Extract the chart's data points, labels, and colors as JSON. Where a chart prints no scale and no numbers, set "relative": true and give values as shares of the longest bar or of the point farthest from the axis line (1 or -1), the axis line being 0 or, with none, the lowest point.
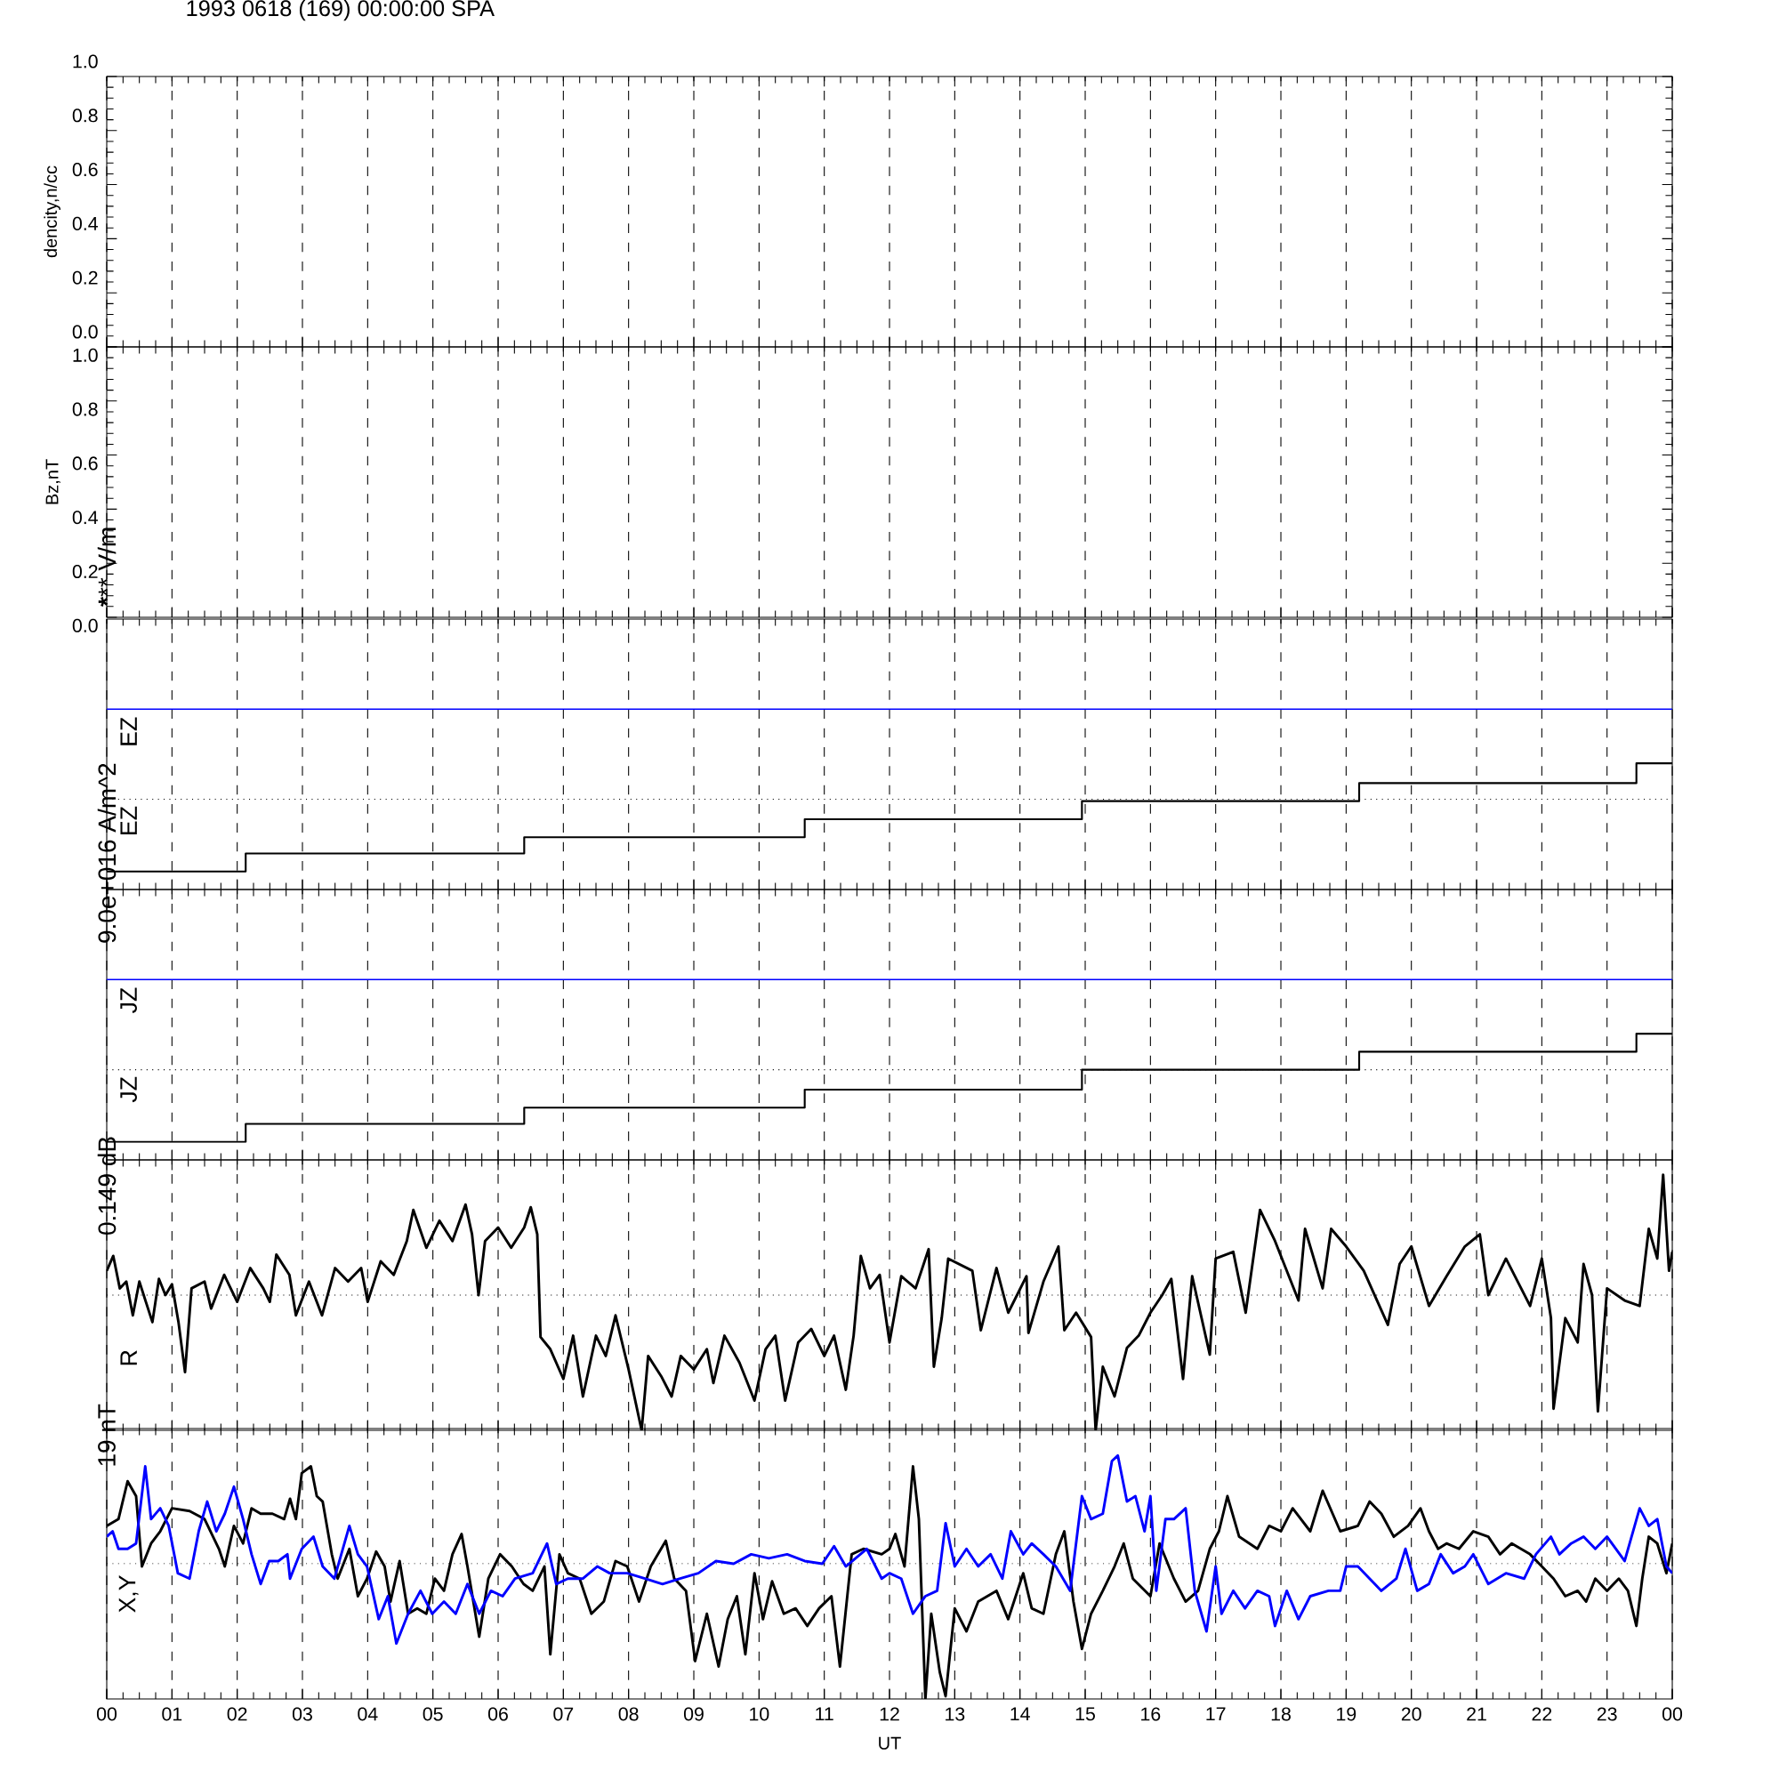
{
  "chart_data": [
    {
      "type": "line",
      "title": "1993 0618 (169) 00:00:00 SPA",
      "ylabel": "dencity,n/cc",
      "xlim": [
        0,
        24
      ],
      "ylim": [
        0,
        1
      ],
      "grid": "x",
      "tick_labels": "y",
      "xticks": [
        {
          "value": 0,
          "label": null
        },
        {
          "value": 1,
          "label": null
        },
        {
          "value": 2,
          "label": null
        },
        {
          "value": 3,
          "label": null
        },
        {
          "value": 4,
          "label": null
        },
        {
          "value": 5,
          "label": null
        },
        {
          "value": 6,
          "label": null
        },
        {
          "value": 7,
          "label": null
        },
        {
          "value": 8,
          "label": null
        },
        {
          "value": 9,
          "label": null
        },
        {
          "value": 10,
          "label": null
        },
        {
          "value": 11,
          "label": null
        },
        {
          "value": 12,
          "label": null
        },
        {
          "value": 13,
          "label": null
        },
        {
          "value": 14,
          "label": null
        },
        {
          "value": 15,
          "label": null
        },
        {
          "value": 16,
          "label": null
        },
        {
          "value": 17,
          "label": null
        },
        {
          "value": 18,
          "label": null
        },
        {
          "value": 19,
          "label": null
        },
        {
          "value": 20,
          "label": null
        },
        {
          "value": 21,
          "label": null
        },
        {
          "value": 22,
          "label": null
        },
        {
          "value": 23,
          "label": null
        },
        {
          "value": 24,
          "label": null
        }
      ],
      "yticks": [
        {
          "value": 0,
          "label": "0.0"
        },
        {
          "value": 0.2,
          "label": "0.2"
        },
        {
          "value": 0.4,
          "label": "0.4"
        },
        {
          "value": 0.6,
          "label": "0.6"
        },
        {
          "value": 0.8,
          "label": "0.8"
        },
        {
          "value": 1,
          "label": "1.0"
        }
      ]
    },
    {
      "type": "line",
      "ylabel": "Bz,nT",
      "xlim": [
        0,
        24
      ],
      "ylim": [
        0,
        1
      ],
      "grid": "x",
      "tick_labels": "y",
      "xticks": [
        {
          "value": 0,
          "label": null
        },
        {
          "value": 1,
          "label": null
        },
        {
          "value": 2,
          "label": null
        },
        {
          "value": 3,
          "label": null
        },
        {
          "value": 4,
          "label": null
        },
        {
          "value": 5,
          "label": null
        },
        {
          "value": 6,
          "label": null
        },
        {
          "value": 7,
          "label": null
        },
        {
          "value": 8,
          "label": null
        },
        {
          "value": 9,
          "label": null
        },
        {
          "value": 10,
          "label": null
        },
        {
          "value": 11,
          "label": null
        },
        {
          "value": 12,
          "label": null
        },
        {
          "value": 13,
          "label": null
        },
        {
          "value": 14,
          "label": null
        },
        {
          "value": 15,
          "label": null
        },
        {
          "value": 16,
          "label": null
        },
        {
          "value": 17,
          "label": null
        },
        {
          "value": 18,
          "label": null
        },
        {
          "value": 19,
          "label": null
        },
        {
          "value": 20,
          "label": null
        },
        {
          "value": 21,
          "label": null
        },
        {
          "value": 22,
          "label": null
        },
        {
          "value": 23,
          "label": null
        },
        {
          "value": 24,
          "label": null
        }
      ],
      "yticks": [
        {
          "value": 0,
          "label": "0.0"
        },
        {
          "value": 0.2,
          "label": "0.2"
        },
        {
          "value": 0.4,
          "label": "0.4"
        },
        {
          "value": 0.6,
          "label": "0.6"
        },
        {
          "value": 0.8,
          "label": "0.8"
        },
        {
          "value": 1,
          "label": "1.0"
        }
      ]
    },
    {
      "type": "step",
      "relative": true,
      "ylabel": "******* V/m",
      "xlim": [
        0,
        24
      ],
      "grid": "x",
      "tick_labels": false,
      "xticks": [
        {
          "value": 0,
          "label": null
        },
        {
          "value": 1,
          "label": null
        },
        {
          "value": 2,
          "label": null
        },
        {
          "value": 3,
          "label": null
        },
        {
          "value": 4,
          "label": null
        },
        {
          "value": 5,
          "label": null
        },
        {
          "value": 6,
          "label": null
        },
        {
          "value": 7,
          "label": null
        },
        {
          "value": 8,
          "label": null
        },
        {
          "value": 9,
          "label": null
        },
        {
          "value": 10,
          "label": null
        },
        {
          "value": 11,
          "label": null
        },
        {
          "value": 12,
          "label": null
        },
        {
          "value": 13,
          "label": null
        },
        {
          "value": 14,
          "label": null
        },
        {
          "value": 15,
          "label": null
        },
        {
          "value": 16,
          "label": null
        },
        {
          "value": 17,
          "label": null
        },
        {
          "value": 18,
          "label": null
        },
        {
          "value": 19,
          "label": null
        },
        {
          "value": 20,
          "label": null
        },
        {
          "value": 21,
          "label": null
        },
        {
          "value": 22,
          "label": null
        },
        {
          "value": 23,
          "label": null
        },
        {
          "value": 24,
          "label": null
        }
      ],
      "ref_lines": [
        {
          "axis": "y",
          "value": 0.5,
          "line_style": "dotted"
        }
      ],
      "series": [
        {
          "name": "EZ",
          "color": "#0000ff",
          "x": [
            0,
            24
          ],
          "values": [
            1,
            1
          ]
        },
        {
          "name": "EZ",
          "color": "#000000",
          "x": [
            0,
            2.13,
            6.4,
            10.7,
            14.95,
            19.2,
            23.45,
            24
          ],
          "values": [
            0.1,
            0.2,
            0.29,
            0.39,
            0.49,
            0.59,
            0.7,
            0.7
          ]
        }
      ]
    },
    {
      "type": "step",
      "relative": true,
      "ylabel": "9.0e+016 A/m^2",
      "xlim": [
        0,
        24
      ],
      "grid": "x",
      "tick_labels": false,
      "xticks": [
        {
          "value": 0,
          "label": null
        },
        {
          "value": 1,
          "label": null
        },
        {
          "value": 2,
          "label": null
        },
        {
          "value": 3,
          "label": null
        },
        {
          "value": 4,
          "label": null
        },
        {
          "value": 5,
          "label": null
        },
        {
          "value": 6,
          "label": null
        },
        {
          "value": 7,
          "label": null
        },
        {
          "value": 8,
          "label": null
        },
        {
          "value": 9,
          "label": null
        },
        {
          "value": 10,
          "label": null
        },
        {
          "value": 11,
          "label": null
        },
        {
          "value": 12,
          "label": null
        },
        {
          "value": 13,
          "label": null
        },
        {
          "value": 14,
          "label": null
        },
        {
          "value": 15,
          "label": null
        },
        {
          "value": 16,
          "label": null
        },
        {
          "value": 17,
          "label": null
        },
        {
          "value": 18,
          "label": null
        },
        {
          "value": 19,
          "label": null
        },
        {
          "value": 20,
          "label": null
        },
        {
          "value": 21,
          "label": null
        },
        {
          "value": 22,
          "label": null
        },
        {
          "value": 23,
          "label": null
        },
        {
          "value": 24,
          "label": null
        }
      ],
      "ref_lines": [
        {
          "axis": "y",
          "value": 0.5,
          "line_style": "dotted"
        }
      ],
      "series": [
        {
          "name": "JZ",
          "color": "#0000ff",
          "x": [
            0,
            24
          ],
          "values": [
            1,
            1
          ]
        },
        {
          "name": "JZ",
          "color": "#000000",
          "x": [
            0,
            2.13,
            6.4,
            10.7,
            14.95,
            19.2,
            23.45,
            24
          ],
          "values": [
            0.1,
            0.2,
            0.29,
            0.39,
            0.5,
            0.6,
            0.7,
            0.7
          ]
        }
      ]
    },
    {
      "type": "line",
      "relative": true,
      "ylabel": "0.149 dB",
      "xlim": [
        0,
        24
      ],
      "grid": "x",
      "tick_labels": false,
      "xticks": [
        {
          "value": 0,
          "label": null
        },
        {
          "value": 1,
          "label": null
        },
        {
          "value": 2,
          "label": null
        },
        {
          "value": 3,
          "label": null
        },
        {
          "value": 4,
          "label": null
        },
        {
          "value": 5,
          "label": null
        },
        {
          "value": 6,
          "label": null
        },
        {
          "value": 7,
          "label": null
        },
        {
          "value": 8,
          "label": null
        },
        {
          "value": 9,
          "label": null
        },
        {
          "value": 10,
          "label": null
        },
        {
          "value": 11,
          "label": null
        },
        {
          "value": 12,
          "label": null
        },
        {
          "value": 13,
          "label": null
        },
        {
          "value": 14,
          "label": null
        },
        {
          "value": 15,
          "label": null
        },
        {
          "value": 16,
          "label": null
        },
        {
          "value": 17,
          "label": null
        },
        {
          "value": 18,
          "label": null
        },
        {
          "value": 19,
          "label": null
        },
        {
          "value": 20,
          "label": null
        },
        {
          "value": 21,
          "label": null
        },
        {
          "value": 22,
          "label": null
        },
        {
          "value": 23,
          "label": null
        },
        {
          "value": 24,
          "label": null
        }
      ],
      "ref_lines": [
        {
          "axis": "y",
          "value": 0,
          "line_style": "dotted"
        }
      ],
      "series": [
        {
          "name": "R",
          "color": "#000000",
          "x": [
            0,
            0.1,
            0.2,
            0.3,
            0.4,
            0.5,
            0.6,
            0.7,
            0.8,
            0.9,
            1,
            1.1,
            1.2,
            1.3,
            1.5,
            1.6,
            1.8,
            2,
            2.2,
            2.4,
            2.5,
            2.6,
            2.8,
            2.9,
            3.1,
            3.3,
            3.5,
            3.7,
            3.9,
            4,
            4.2,
            4.4,
            4.6,
            4.7,
            4.9,
            5.1,
            5.3,
            5.5,
            5.6,
            5.7,
            5.8,
            6,
            6.2,
            6.4,
            6.5,
            6.6,
            6.65,
            6.8,
            7,
            7.15,
            7.3,
            7.5,
            7.65,
            7.8,
            8,
            8.2,
            8.3,
            8.5,
            8.66,
            8.8,
            9,
            9.2,
            9.3,
            9.47,
            9.7,
            9.93,
            10.1,
            10.25,
            10.4,
            10.6,
            10.8,
            11,
            11.15,
            11.33,
            11.45,
            11.56,
            11.7,
            11.85,
            12,
            12.18,
            12.4,
            12.6,
            12.68,
            12.8,
            12.9,
            13.27,
            13.4,
            13.64,
            13.82,
            14.1,
            14.13,
            14.36,
            14.59,
            14.68,
            14.86,
            15.09,
            15.16,
            15.27,
            15.45,
            15.64,
            15.82,
            16,
            16.18,
            16.32,
            16.5,
            16.64,
            16.91,
            17,
            17.27,
            17.46,
            17.68,
            17.91,
            18.27,
            18.37,
            18.64,
            18.77,
            19,
            19.27,
            19.64,
            19.82,
            20,
            20.27,
            20.54,
            20.82,
            21.05,
            21.18,
            21.45,
            21.82,
            22,
            22.14,
            22.18,
            22.36,
            22.55,
            22.64,
            22.77,
            22.86,
            23,
            23.27,
            23.5,
            23.64,
            23.77,
            23.86,
            23.95,
            24
          ],
          "values": [
            0.18,
            0.29,
            0.05,
            0.1,
            -0.15,
            0.1,
            -0.05,
            -0.2,
            0.12,
            0,
            0.08,
            -0.2,
            -0.57,
            0.05,
            0.1,
            -0.1,
            0.15,
            -0.05,
            0.2,
            0.05,
            -0.05,
            0.3,
            0.15,
            -0.15,
            0.1,
            -0.15,
            0.2,
            0.1,
            0.2,
            -0.05,
            0.25,
            0.15,
            0.4,
            0.63,
            0.35,
            0.55,
            0.4,
            0.67,
            0.45,
            0,
            0.4,
            0.5,
            0.35,
            0.5,
            0.65,
            0.45,
            -0.31,
            -0.4,
            -0.62,
            -0.3,
            -0.75,
            -0.3,
            -0.45,
            -0.15,
            -0.55,
            -1,
            -0.45,
            -0.6,
            -0.75,
            -0.45,
            -0.55,
            -0.4,
            -0.65,
            -0.3,
            -0.5,
            -0.78,
            -0.4,
            -0.3,
            -0.78,
            -0.35,
            -0.25,
            -0.45,
            -0.3,
            -0.7,
            -0.3,
            0.29,
            0.05,
            0.15,
            -0.35,
            0.14,
            0.05,
            0.34,
            -0.53,
            -0.17,
            0.27,
            0.18,
            -0.26,
            0.2,
            -0.13,
            0.14,
            -0.28,
            0.1,
            0.36,
            -0.26,
            -0.13,
            -0.31,
            -1,
            -0.53,
            -0.75,
            -0.39,
            -0.3,
            -0.13,
            0,
            0.12,
            -0.62,
            0.14,
            -0.44,
            0.27,
            0.32,
            -0.13,
            0.63,
            0.4,
            -0.04,
            0.49,
            0.05,
            0.49,
            0.36,
            0.18,
            -0.22,
            0.23,
            0.36,
            -0.08,
            0.14,
            0.36,
            0.45,
            0,
            0.27,
            -0.08,
            0.27,
            -0.17,
            -0.84,
            -0.17,
            -0.35,
            0.23,
            0,
            -0.86,
            0.05,
            -0.04,
            -0.08,
            0.49,
            0.27,
            0.89,
            0.18,
            0.32
          ]
        }
      ]
    },
    {
      "type": "line",
      "relative": true,
      "ylabel": "19 nT",
      "xlabel": "UT",
      "annotations": [
        "X,Y"
      ],
      "xlim": [
        0,
        24
      ],
      "grid": "x",
      "tick_labels": "x",
      "xticks": [
        {
          "value": 0,
          "label": "00"
        },
        {
          "value": 1,
          "label": "01"
        },
        {
          "value": 2,
          "label": "02"
        },
        {
          "value": 3,
          "label": "03"
        },
        {
          "value": 4,
          "label": "04"
        },
        {
          "value": 5,
          "label": "05"
        },
        {
          "value": 6,
          "label": "06"
        },
        {
          "value": 7,
          "label": "07"
        },
        {
          "value": 8,
          "label": "08"
        },
        {
          "value": 9,
          "label": "09"
        },
        {
          "value": 10,
          "label": "10"
        },
        {
          "value": 11,
          "label": "11"
        },
        {
          "value": 12,
          "label": "12"
        },
        {
          "value": 13,
          "label": "13"
        },
        {
          "value": 14,
          "label": "14"
        },
        {
          "value": 15,
          "label": "15"
        },
        {
          "value": 16,
          "label": "16"
        },
        {
          "value": 17,
          "label": "17"
        },
        {
          "value": 18,
          "label": "18"
        },
        {
          "value": 19,
          "label": "19"
        },
        {
          "value": 20,
          "label": "20"
        },
        {
          "value": 21,
          "label": "21"
        },
        {
          "value": 22,
          "label": "22"
        },
        {
          "value": 23,
          "label": "23"
        },
        {
          "value": 24,
          "label": "00"
        }
      ],
      "ref_lines": [
        {
          "axis": "y",
          "value": 0,
          "line_style": "dotted"
        }
      ],
      "series": [
        {
          "color": "#000000",
          "x": [
            0,
            0.18,
            0.32,
            0.45,
            0.54,
            0.68,
            0.82,
            1,
            1.27,
            1.5,
            1.72,
            1.81,
            1.95,
            2.09,
            2.22,
            2.36,
            2.54,
            2.72,
            2.81,
            2.9,
            2.99,
            3.13,
            3.22,
            3.31,
            3.45,
            3.54,
            3.72,
            3.85,
            3.99,
            4.13,
            4.26,
            4.35,
            4.49,
            4.62,
            4.76,
            4.9,
            5.03,
            5.17,
            5.3,
            5.44,
            5.53,
            5.71,
            5.85,
            6.03,
            6.21,
            6.39,
            6.53,
            6.71,
            6.8,
            6.94,
            7.07,
            7.25,
            7.43,
            7.62,
            7.8,
            7.98,
            8.16,
            8.34,
            8.57,
            8.7,
            8.88,
            9.02,
            9.2,
            9.38,
            9.52,
            9.66,
            9.79,
            9.93,
            10.06,
            10.2,
            10.38,
            10.56,
            10.74,
            10.92,
            11.11,
            11.24,
            11.42,
            11.6,
            11.88,
            12,
            12.09,
            12.23,
            12.36,
            12.45,
            12.55,
            12.64,
            12.77,
            12.86,
            13,
            13.18,
            13.36,
            13.64,
            13.82,
            14.05,
            14.18,
            14.36,
            14.55,
            14.68,
            14.82,
            14.95,
            15.09,
            15.27,
            15.45,
            15.59,
            15.73,
            16,
            16.14,
            16.36,
            16.54,
            16.73,
            16.91,
            17.05,
            17.18,
            17.36,
            17.64,
            17.82,
            18,
            18.18,
            18.45,
            18.64,
            18.91,
            19.18,
            19.36,
            19.54,
            19.73,
            19.95,
            20.14,
            20.27,
            20.41,
            20.54,
            20.73,
            20.95,
            21.18,
            21.36,
            21.54,
            21.82,
            22,
            22.18,
            22.36,
            22.55,
            22.68,
            22.82,
            23,
            23.18,
            23.32,
            23.45,
            23.54,
            23.64,
            23.77,
            23.91,
            24
          ],
          "values": [
            0.28,
            0.33,
            0.61,
            0.5,
            -0.02,
            0.15,
            0.24,
            0.41,
            0.39,
            0.33,
            0.11,
            -0.02,
            0.28,
            0.15,
            0.41,
            0.37,
            0.37,
            0.33,
            0.48,
            0.33,
            0.67,
            0.72,
            0.5,
            0.46,
            0.07,
            -0.11,
            0.11,
            -0.24,
            -0.11,
            0.09,
            -0.02,
            -0.28,
            0.02,
            -0.37,
            -0.33,
            -0.37,
            -0.11,
            -0.2,
            0.07,
            0.22,
            -0.02,
            -0.54,
            -0.11,
            0.07,
            -0.02,
            -0.15,
            -0.2,
            -0.02,
            -0.67,
            0.07,
            -0.07,
            -0.11,
            -0.37,
            -0.28,
            0.02,
            -0.02,
            -0.28,
            -0.02,
            0.17,
            -0.11,
            -0.2,
            -0.72,
            -0.37,
            -0.76,
            -0.41,
            -0.24,
            -0.67,
            -0.07,
            -0.41,
            -0.13,
            -0.37,
            -0.33,
            -0.46,
            -0.33,
            -0.24,
            -0.76,
            0.07,
            0.11,
            0.07,
            0.11,
            0.22,
            -0.02,
            0.72,
            0.33,
            -1,
            -0.37,
            -0.8,
            -0.98,
            -0.33,
            -0.5,
            -0.28,
            -0.2,
            -0.41,
            -0.07,
            -0.33,
            -0.37,
            0.07,
            0.24,
            -0.28,
            -0.63,
            -0.37,
            -0.2,
            -0.02,
            0.15,
            -0.11,
            -0.24,
            0.15,
            -0.11,
            -0.28,
            -0.2,
            0.11,
            0.24,
            0.5,
            0.2,
            0.11,
            0.28,
            0.24,
            0.41,
            0.24,
            0.54,
            0.24,
            0.28,
            0.46,
            0.37,
            0.2,
            0.28,
            0.41,
            0.24,
            0.11,
            0.15,
            0.11,
            0.24,
            0.2,
            0.07,
            0.15,
            0.07,
            -0.02,
            -0.11,
            -0.24,
            -0.2,
            -0.28,
            -0.11,
            -0.2,
            -0.11,
            -0.2,
            -0.46,
            -0.11,
            0.2,
            0.15,
            -0.07,
            0.15
          ]
        },
        {
          "color": "#0000ff",
          "x": [
            0,
            0.09,
            0.18,
            0.32,
            0.45,
            0.59,
            0.68,
            0.82,
            0.95,
            1.09,
            1.27,
            1.41,
            1.54,
            1.68,
            1.81,
            1.95,
            2.09,
            2.22,
            2.36,
            2.49,
            2.63,
            2.77,
            2.81,
            2.99,
            3.17,
            3.31,
            3.49,
            3.72,
            3.85,
            3.99,
            4.17,
            4.31,
            4.44,
            4.62,
            4.81,
            4.99,
            5.17,
            5.35,
            5.53,
            5.71,
            5.89,
            6.07,
            6.26,
            6.53,
            6.75,
            6.89,
            7.07,
            7.3,
            7.52,
            7.71,
            7.98,
            8.25,
            8.52,
            8.79,
            9.07,
            9.34,
            9.61,
            9.88,
            10.15,
            10.43,
            10.7,
            10.97,
            11.15,
            11.33,
            11.65,
            11.88,
            12,
            12.18,
            12.36,
            12.55,
            12.73,
            12.86,
            13,
            13.18,
            13.36,
            13.55,
            13.73,
            13.86,
            14.05,
            14.18,
            14.36,
            14.55,
            14.77,
            14.95,
            15.09,
            15.27,
            15.41,
            15.5,
            15.64,
            15.77,
            15.91,
            16,
            16.09,
            16.23,
            16.36,
            16.54,
            16.68,
            16.86,
            17,
            17.09,
            17.27,
            17.45,
            17.64,
            17.82,
            17.91,
            18.09,
            18.27,
            18.45,
            18.73,
            18.91,
            19,
            19.18,
            19.36,
            19.54,
            19.77,
            19.91,
            20.09,
            20.27,
            20.45,
            20.64,
            20.82,
            20.95,
            21.18,
            21.45,
            21.73,
            21.91,
            22.14,
            22.27,
            22.45,
            22.64,
            22.82,
            23,
            23.27,
            23.5,
            23.64,
            23.77,
            23.91,
            24
          ],
          "values": [
            0.2,
            0.24,
            0.11,
            0.11,
            0.15,
            0.72,
            0.33,
            0.41,
            0.28,
            -0.07,
            -0.11,
            0.24,
            0.46,
            0.24,
            0.37,
            0.57,
            0.33,
            0.07,
            -0.15,
            0.02,
            0.02,
            0.07,
            -0.11,
            0.11,
            0.2,
            -0.02,
            -0.11,
            0.28,
            0.07,
            -0.02,
            -0.41,
            -0.24,
            -0.59,
            -0.37,
            -0.2,
            -0.37,
            -0.28,
            -0.37,
            -0.15,
            -0.37,
            -0.2,
            -0.24,
            -0.11,
            -0.07,
            0.15,
            -0.15,
            -0.11,
            -0.11,
            -0.02,
            -0.07,
            -0.07,
            -0.11,
            -0.15,
            -0.11,
            -0.07,
            0.02,
            0,
            0.07,
            0.04,
            0.07,
            0.02,
            0,
            0.13,
            -0.02,
            0.11,
            -0.11,
            -0.07,
            -0.11,
            -0.37,
            -0.24,
            -0.2,
            0.3,
            -0.02,
            0.11,
            -0.02,
            0.07,
            -0.11,
            0.24,
            0.07,
            0.15,
            0.07,
            -0.02,
            -0.2,
            0.5,
            0.33,
            0.37,
            0.76,
            0.8,
            0.46,
            0.5,
            0.24,
            0.5,
            -0.2,
            0.33,
            0.33,
            0.41,
            -0.2,
            -0.5,
            -0.02,
            -0.37,
            -0.2,
            -0.33,
            -0.2,
            -0.24,
            -0.46,
            -0.2,
            -0.41,
            -0.24,
            -0.2,
            -0.2,
            -0.02,
            -0.02,
            -0.11,
            -0.2,
            -0.11,
            0.11,
            -0.2,
            -0.15,
            0.07,
            -0.07,
            -0.02,
            0.07,
            -0.15,
            -0.07,
            -0.11,
            0.07,
            0.2,
            0.07,
            0.15,
            0.2,
            0.11,
            0.2,
            0.02,
            0.41,
            0.28,
            0.33,
            -0.02,
            -0.07
          ]
        }
      ]
    }
  ]
}
